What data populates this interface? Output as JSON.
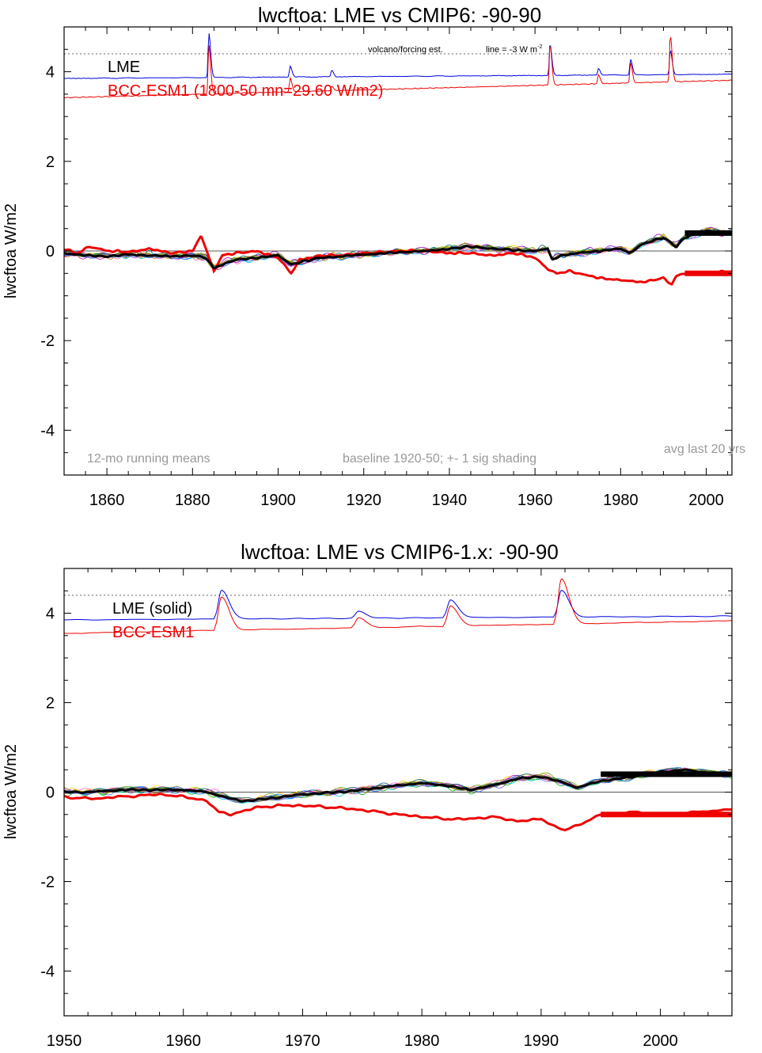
{
  "colors": {
    "lme": "#0000dd",
    "model": "#ee0000",
    "ensemble_mean": "#000000",
    "note_gray": "#999999",
    "axis": "#000000",
    "volcano_line": "#666666"
  },
  "chart_data": [
    {
      "type": "line",
      "title": "lwcftoa: LME vs CMIP6: -90-90",
      "ylabel": "lwcftoa W/m2",
      "xlabel": "",
      "xlim": [
        1850,
        2006
      ],
      "ylim": [
        -5,
        5
      ],
      "xticks": [
        1860,
        1880,
        1900,
        1920,
        1940,
        1960,
        1980,
        2000
      ],
      "yticks": [
        -4,
        -2,
        0,
        2,
        4
      ],
      "xtick_labels": [
        "1860",
        "1880",
        "1900",
        "1920",
        "1940",
        "1960",
        "1980",
        "2000"
      ],
      "ytick_labels": [
        "-4",
        "-2",
        "0",
        "2",
        "4"
      ],
      "legend": [
        {
          "label": "LME",
          "color": "#000000"
        },
        {
          "label": "BCC-ESM1  (1800-50 mn=29.60 W/m2)",
          "color": "#ee0000"
        }
      ],
      "annotations": {
        "volcano": "volcano/forcing est.",
        "line_label": "line = -3 W m",
        "line_sup": "-2",
        "running_mean": "12-mo running means",
        "baseline": "baseline 1920-50; +- 1 sig shading",
        "avg_last": "avg last 20 yrs"
      },
      "volcano_ref_y": 4.4,
      "forcing": {
        "base_lme": 3.85,
        "trend_lme": 0.0006,
        "base_model": 3.42,
        "trend_model": 0.0025,
        "peaks": [
          {
            "x": 1883.8,
            "lme": 1.0,
            "model": 1.1
          },
          {
            "x": 1902.8,
            "lme": 0.25,
            "model": 0.3
          },
          {
            "x": 1912.5,
            "lme": 0.15,
            "model": 0.1
          },
          {
            "x": 1963.5,
            "lme": 0.7,
            "model": 0.9
          },
          {
            "x": 1974.8,
            "lme": 0.15,
            "model": 0.2
          },
          {
            "x": 1982.3,
            "lme": 0.35,
            "model": 0.45
          },
          {
            "x": 1991.6,
            "lme": 0.55,
            "model": 1.05
          }
        ]
      },
      "series": [
        {
          "name": "LME",
          "color": "#000000",
          "x": [
            1850,
            1855,
            1860,
            1865,
            1870,
            1875,
            1880,
            1883,
            1885,
            1887,
            1890,
            1895,
            1900,
            1903,
            1905,
            1910,
            1915,
            1920,
            1925,
            1930,
            1935,
            1940,
            1945,
            1950,
            1955,
            1960,
            1963,
            1964,
            1966,
            1970,
            1975,
            1980,
            1982,
            1985,
            1990,
            1993,
            1995,
            2000,
            2005
          ],
          "y": [
            -0.05,
            -0.1,
            -0.12,
            -0.08,
            -0.1,
            -0.12,
            -0.1,
            -0.15,
            -0.38,
            -0.3,
            -0.2,
            -0.15,
            -0.1,
            -0.3,
            -0.25,
            -0.15,
            -0.12,
            -0.08,
            -0.05,
            -0.02,
            0.0,
            0.05,
            0.1,
            0.05,
            0.02,
            0.0,
            0.05,
            -0.2,
            -0.1,
            -0.05,
            0.0,
            0.05,
            -0.05,
            0.15,
            0.3,
            0.1,
            0.3,
            0.45,
            0.4
          ]
        },
        {
          "name": "BCC-ESM1",
          "color": "#ee0000",
          "x": [
            1850,
            1853,
            1856,
            1860,
            1865,
            1870,
            1875,
            1880,
            1882,
            1885,
            1887,
            1890,
            1895,
            1900,
            1903,
            1905,
            1910,
            1915,
            1920,
            1925,
            1930,
            1935,
            1940,
            1945,
            1950,
            1955,
            1960,
            1963,
            1965,
            1968,
            1970,
            1975,
            1980,
            1985,
            1990,
            1992,
            1993,
            1995,
            2000,
            2005
          ],
          "y": [
            0.05,
            -0.05,
            0.1,
            0.0,
            -0.02,
            0.05,
            -0.05,
            0.0,
            0.35,
            -0.45,
            -0.1,
            -0.05,
            0.0,
            -0.15,
            -0.5,
            -0.2,
            -0.1,
            -0.1,
            -0.05,
            -0.02,
            0.0,
            0.0,
            -0.05,
            -0.05,
            -0.1,
            -0.05,
            -0.15,
            -0.4,
            -0.5,
            -0.45,
            -0.5,
            -0.6,
            -0.65,
            -0.7,
            -0.6,
            -0.75,
            -0.55,
            -0.5,
            -0.5,
            -0.45
          ]
        }
      ],
      "avg_bars": [
        {
          "color": "#000000",
          "x": [
            1995,
            2006
          ],
          "y": 0.4
        },
        {
          "color": "#ee0000",
          "x": [
            1995,
            2006
          ],
          "y": -0.5
        }
      ],
      "members": 14
    },
    {
      "type": "line",
      "title": "lwcftoa: LME vs CMIP6-1.x: -90-90",
      "ylabel": "lwcftoa W/m2",
      "xlabel": "",
      "xlim": [
        1950,
        2006
      ],
      "ylim": [
        -5,
        5
      ],
      "xticks": [
        1950,
        1960,
        1970,
        1980,
        1990,
        2000
      ],
      "yticks": [
        -4,
        -2,
        0,
        2,
        4
      ],
      "xtick_labels": [
        "1950",
        "1960",
        "1970",
        "1980",
        "1990",
        "2000"
      ],
      "ytick_labels": [
        "-4",
        "-2",
        "0",
        "2",
        "4"
      ],
      "legend": [
        {
          "label": "LME (solid)",
          "color": "#000000"
        },
        {
          "label": "BCC-ESM1",
          "color": "#ee0000"
        }
      ],
      "volcano_ref_y": 4.4,
      "forcing": {
        "base_lme": 3.85,
        "trend_lme": 0.0015,
        "base_model": 3.55,
        "trend_model": 0.005,
        "peaks": [
          {
            "x": 1963.2,
            "lme": 0.65,
            "model": 0.75
          },
          {
            "x": 1974.7,
            "lme": 0.15,
            "model": 0.22
          },
          {
            "x": 1982.4,
            "lme": 0.4,
            "model": 0.45
          },
          {
            "x": 1991.7,
            "lme": 0.6,
            "model": 1.0
          }
        ]
      },
      "series": [
        {
          "name": "LME (solid)",
          "color": "#000000",
          "x": [
            1950,
            1952,
            1955,
            1958,
            1960,
            1962,
            1964,
            1965,
            1967,
            1970,
            1973,
            1975,
            1978,
            1980,
            1982,
            1984,
            1986,
            1988,
            1990,
            1992,
            1993,
            1995,
            1998,
            2000,
            2002,
            2005
          ],
          "y": [
            0.0,
            0.0,
            0.05,
            0.05,
            0.05,
            0.0,
            -0.15,
            -0.2,
            -0.15,
            -0.05,
            0.0,
            0.05,
            0.15,
            0.2,
            0.15,
            0.05,
            0.15,
            0.3,
            0.35,
            0.2,
            0.1,
            0.25,
            0.35,
            0.45,
            0.5,
            0.4
          ]
        },
        {
          "name": "BCC-ESM1",
          "color": "#ee0000",
          "x": [
            1950,
            1952,
            1955,
            1958,
            1960,
            1962,
            1963,
            1964,
            1966,
            1968,
            1970,
            1973,
            1975,
            1978,
            1980,
            1982,
            1984,
            1986,
            1988,
            1990,
            1991,
            1992,
            1993,
            1995,
            1998,
            2000,
            2003,
            2005
          ],
          "y": [
            -0.1,
            -0.15,
            -0.1,
            -0.05,
            -0.1,
            -0.2,
            -0.45,
            -0.5,
            -0.35,
            -0.3,
            -0.3,
            -0.35,
            -0.4,
            -0.5,
            -0.55,
            -0.6,
            -0.6,
            -0.55,
            -0.65,
            -0.6,
            -0.75,
            -0.85,
            -0.75,
            -0.5,
            -0.45,
            -0.5,
            -0.45,
            -0.4
          ]
        }
      ],
      "avg_bars": [
        {
          "color": "#000000",
          "x": [
            1995,
            2006
          ],
          "y": 0.4
        },
        {
          "color": "#ee0000",
          "x": [
            1995,
            2006
          ],
          "y": -0.5
        }
      ],
      "members": 14
    }
  ]
}
